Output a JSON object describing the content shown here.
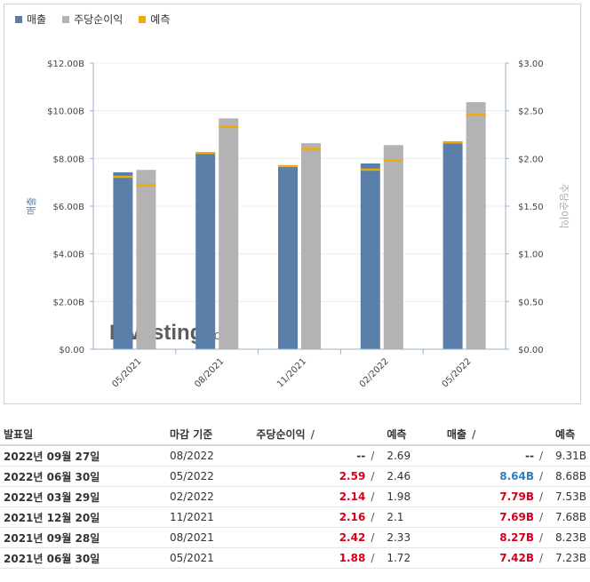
{
  "legend": [
    {
      "label": "매출",
      "color": "#5a7fa8"
    },
    {
      "label": "주당순이익",
      "color": "#b3b3b3"
    },
    {
      "label": "예측",
      "color": "#f2a900"
    }
  ],
  "watermark": {
    "text_main": "Investing",
    "text_suffix": ".com"
  },
  "chart_data": {
    "type": "bar",
    "categories": [
      "05/2021",
      "08/2021",
      "11/2021",
      "02/2022",
      "05/2022"
    ],
    "series": [
      {
        "name": "매출",
        "axis": "left",
        "values": [
          7.42,
          8.27,
          7.69,
          7.79,
          8.64
        ],
        "forecast": [
          7.23,
          8.23,
          7.68,
          7.53,
          8.68
        ],
        "color": "#5a7fa8"
      },
      {
        "name": "주당순이익",
        "axis": "right",
        "values": [
          1.88,
          2.42,
          2.16,
          2.14,
          2.59
        ],
        "forecast": [
          1.72,
          2.33,
          2.1,
          1.98,
          2.46
        ],
        "color": "#b3b3b3"
      }
    ],
    "forecast_color": "#f2a900",
    "ylabel": "매출",
    "y2label": "주당순이익",
    "ylim": [
      0,
      12
    ],
    "y2lim": [
      0,
      3
    ],
    "yticks": [
      "$0.00",
      "$2.00B",
      "$4.00B",
      "$6.00B",
      "$8.00B",
      "$10.00B",
      "$12.00B"
    ],
    "y2ticks": [
      "$0.00",
      "$0.50",
      "$1.00",
      "$1.50",
      "$2.00",
      "$2.50",
      "$3.00"
    ]
  },
  "table": {
    "headers": {
      "date": "발표일",
      "period": "마감 기준",
      "eps": "주당순이익",
      "eps_fc": "예측",
      "rev": "매출",
      "rev_fc": "예측",
      "slash": "/"
    },
    "rows": [
      {
        "date": "2022년 09월 27일",
        "period": "08/2022",
        "eps": "--",
        "eps_fc": "2.69",
        "rev": "--",
        "rev_fc": "9.31B",
        "eps_color": "",
        "rev_color": ""
      },
      {
        "date": "2022년 06월 30일",
        "period": "05/2022",
        "eps": "2.59",
        "eps_fc": "2.46",
        "rev": "8.64B",
        "rev_fc": "8.68B",
        "eps_color": "red",
        "rev_color": "blue"
      },
      {
        "date": "2022년 03월 29일",
        "period": "02/2022",
        "eps": "2.14",
        "eps_fc": "1.98",
        "rev": "7.79B",
        "rev_fc": "7.53B",
        "eps_color": "red",
        "rev_color": "red"
      },
      {
        "date": "2021년 12월 20일",
        "period": "11/2021",
        "eps": "2.16",
        "eps_fc": "2.1",
        "rev": "7.69B",
        "rev_fc": "7.68B",
        "eps_color": "red",
        "rev_color": "red"
      },
      {
        "date": "2021년 09월 28일",
        "period": "08/2021",
        "eps": "2.42",
        "eps_fc": "2.33",
        "rev": "8.27B",
        "rev_fc": "8.23B",
        "eps_color": "red",
        "rev_color": "red"
      },
      {
        "date": "2021년 06월 30일",
        "period": "05/2021",
        "eps": "1.88",
        "eps_fc": "1.72",
        "rev": "7.42B",
        "rev_fc": "7.23B",
        "eps_color": "red",
        "rev_color": "red"
      }
    ]
  }
}
